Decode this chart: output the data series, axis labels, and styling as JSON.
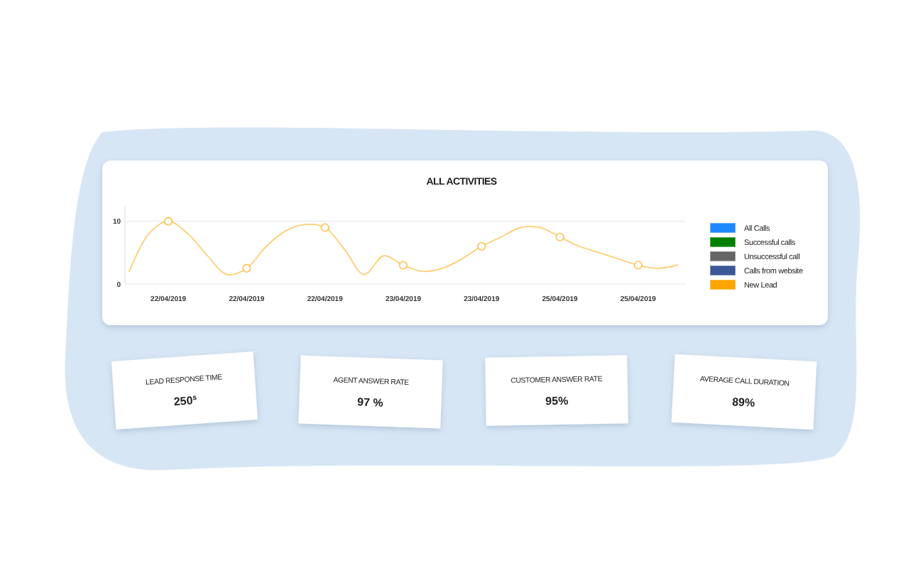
{
  "chart_data": [
    {
      "type": "line",
      "title": "ALL ACTIVITIES",
      "categories": [
        null,
        null,
        "22/04/2019",
        null,
        null,
        null,
        "22/04/2019",
        null,
        null,
        null,
        "22/04/2019",
        null,
        null,
        null,
        "23/04/2019",
        null,
        null,
        null,
        "23/04/2019",
        null,
        null,
        null,
        "25/04/2019",
        null,
        null,
        null,
        "25/04/2019",
        null,
        null
      ],
      "series": [
        {
          "name": "All Calls",
          "color": "#1e88ff",
          "values": [
            null,
            null,
            null,
            null,
            null,
            null,
            null,
            null,
            null,
            null,
            null,
            null,
            null,
            null,
            null,
            null,
            null,
            null,
            null,
            null,
            null,
            null,
            null,
            null,
            null,
            null,
            null,
            null,
            null
          ]
        },
        {
          "name": "Successful calls",
          "color": "#008000",
          "values": [
            null,
            null,
            null,
            null,
            null,
            null,
            null,
            null,
            null,
            null,
            null,
            null,
            null,
            null,
            null,
            null,
            null,
            null,
            null,
            null,
            null,
            null,
            null,
            null,
            null,
            null,
            null,
            null,
            null
          ]
        },
        {
          "name": "Unsuccessful call",
          "color": "#666666",
          "values": [
            null,
            null,
            null,
            null,
            null,
            null,
            null,
            null,
            null,
            null,
            null,
            null,
            null,
            null,
            null,
            null,
            null,
            null,
            null,
            null,
            null,
            null,
            null,
            null,
            null,
            null,
            null,
            null,
            null
          ]
        },
        {
          "name": "Calls from website",
          "color": "#3b5998",
          "values": [
            null,
            null,
            null,
            null,
            null,
            null,
            null,
            null,
            null,
            null,
            null,
            null,
            null,
            null,
            null,
            null,
            null,
            null,
            null,
            null,
            null,
            null,
            null,
            null,
            null,
            null,
            null,
            null,
            null
          ]
        },
        {
          "name": "New Lead",
          "color": "#ffa500",
          "marker": "none",
          "values": [
            2,
            8,
            10,
            8,
            4.5,
            1.5,
            2.5,
            6,
            8.5,
            9.5,
            9,
            5.5,
            1.5,
            4.5,
            3,
            2,
            2.5,
            4,
            6,
            7.5,
            9,
            9,
            7.5,
            6,
            5,
            4,
            3,
            2.5,
            3
          ]
        },
        {
          "type": "scatter",
          "color": "#ffa500",
          "marker": "circle",
          "values": [
            null,
            null,
            10,
            null,
            null,
            null,
            2.5,
            null,
            null,
            null,
            9,
            null,
            null,
            null,
            3,
            null,
            null,
            null,
            6,
            null,
            null,
            null,
            7.5,
            null,
            null,
            null,
            3,
            null,
            null
          ]
        }
      ],
      "ylim": [
        0,
        12
      ],
      "yticks": [
        0,
        10
      ],
      "grid": "y",
      "legend": "right",
      "line_style": "solid"
    },
    {
      "type": "other",
      "title": "LEAD RESPONSE TIME",
      "annotations": [
        "250$^{s}$"
      ]
    },
    {
      "type": "other",
      "title": "AGENT ANSWER RATE",
      "annotations": [
        "97 %"
      ]
    },
    {
      "type": "other",
      "title": "CUSTOMER ANSWER RATE",
      "annotations": [
        "95%"
      ]
    },
    {
      "type": "other",
      "title": "AVERAGE CALL DURATION",
      "annotations": [
        "89%"
      ]
    }
  ]
}
